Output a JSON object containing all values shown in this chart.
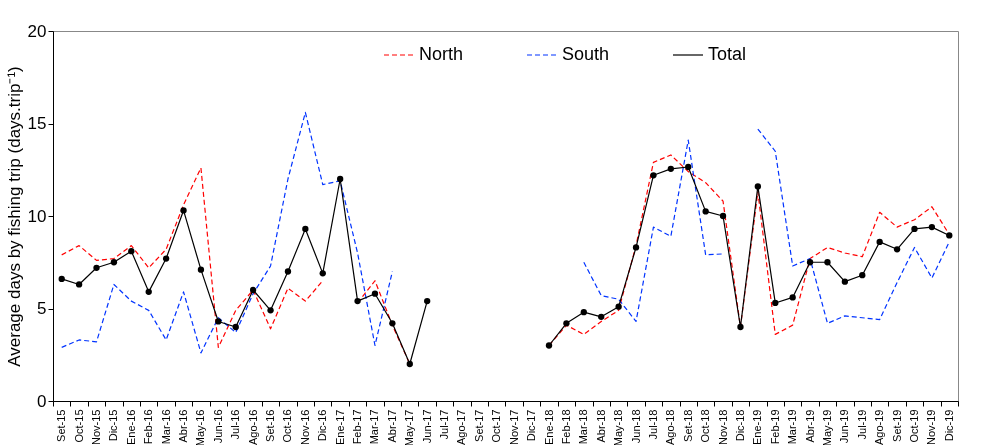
{
  "chart_data": {
    "type": "line",
    "ylabel": "Average days by fishing trip (days.trip⁻¹)",
    "categories": [
      "Set-15",
      "Oct-15",
      "Nov-15",
      "Dic-15",
      "Ene-16",
      "Feb-16",
      "Mar-16",
      "Abr-16",
      "May-16",
      "Jun-16",
      "Jul-16",
      "Ago-16",
      "Set-16",
      "Oct-16",
      "Nov-16",
      "Dic-16",
      "Ene-17",
      "Feb-17",
      "Mar-17",
      "Abr-17",
      "May-17",
      "Jun-17",
      "Jul-17",
      "Ago-17",
      "Set-17",
      "Oct-17",
      "Nov-17",
      "Dic-17",
      "Ene-18",
      "Feb-18",
      "Mar-18",
      "Abr-18",
      "May-18",
      "Jun-18",
      "Jul-18",
      "Ago-18",
      "Set-18",
      "Oct-18",
      "Nov-18",
      "Dic-18",
      "Ene-19",
      "Feb-19",
      "Mar-19",
      "Abr-19",
      "May-19",
      "Jun-19",
      "Jul-19",
      "Ago-19",
      "Set-19",
      "Oct-19",
      "Nov-19",
      "Dic-19"
    ],
    "series": [
      {
        "name": "North",
        "color": "#ff0000",
        "line_style": "dashed",
        "marker": "none",
        "values": [
          7.9,
          8.4,
          7.6,
          7.7,
          8.4,
          7.2,
          8.2,
          10.6,
          12.6,
          2.9,
          4.9,
          6.0,
          3.9,
          6.1,
          5.4,
          6.5,
          null,
          5.3,
          6.5,
          4.1,
          2.0,
          null,
          null,
          null,
          null,
          null,
          null,
          null,
          3.0,
          4.1,
          3.6,
          4.3,
          4.9,
          8.4,
          12.9,
          13.3,
          12.4,
          11.8,
          10.8,
          4.0,
          11.3,
          3.6,
          4.1,
          7.7,
          8.3,
          8.0,
          7.8,
          10.2,
          9.4,
          9.8,
          10.5,
          9.0
        ]
      },
      {
        "name": "South",
        "color": "#0033ff",
        "line_style": "dashed",
        "marker": "none",
        "values": [
          2.9,
          3.3,
          3.2,
          6.3,
          5.4,
          4.9,
          3.3,
          5.9,
          2.6,
          4.5,
          3.7,
          5.8,
          7.3,
          12.0,
          15.6,
          11.7,
          11.9,
          8.0,
          3.0,
          7.0,
          null,
          null,
          null,
          null,
          null,
          null,
          null,
          null,
          null,
          null,
          7.5,
          5.7,
          5.5,
          4.3,
          9.4,
          8.9,
          14.1,
          7.9,
          7.95,
          null,
          14.7,
          13.5,
          7.3,
          7.7,
          4.2,
          4.6,
          4.5,
          4.4,
          6.4,
          8.3,
          6.65,
          8.6
        ]
      },
      {
        "name": "Total",
        "color": "#000000",
        "line_style": "solid",
        "marker": "circle",
        "values": [
          6.6,
          6.3,
          7.2,
          7.5,
          8.1,
          5.9,
          7.7,
          10.3,
          7.1,
          4.3,
          4.0,
          6.0,
          4.9,
          7.0,
          9.3,
          6.9,
          12.0,
          5.4,
          5.8,
          4.2,
          2.0,
          5.4,
          null,
          null,
          null,
          null,
          null,
          null,
          3.0,
          4.2,
          4.8,
          4.55,
          5.1,
          8.3,
          12.2,
          12.55,
          12.65,
          10.25,
          10.0,
          4.0,
          11.6,
          5.3,
          5.6,
          7.5,
          7.5,
          6.45,
          6.8,
          8.6,
          8.2,
          9.3,
          9.4,
          8.95
        ]
      }
    ],
    "ylim": [
      0,
      20
    ],
    "yticks": [
      0,
      5,
      10,
      15,
      20
    ],
    "grid": false,
    "legend": "top"
  }
}
